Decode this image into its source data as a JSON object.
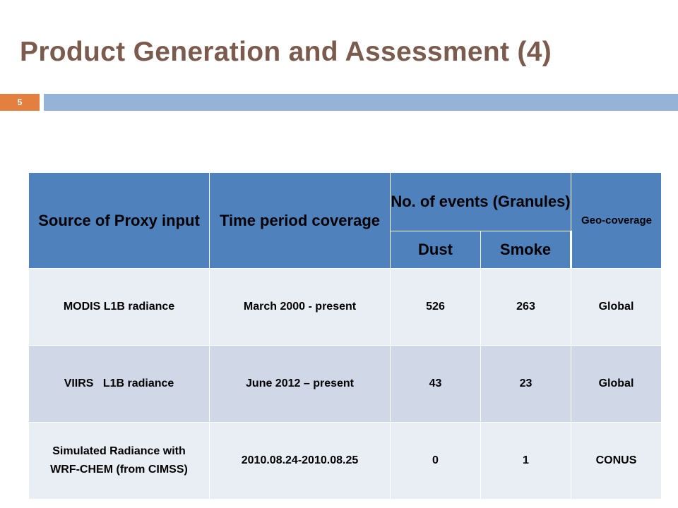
{
  "slide": {
    "title": "Product Generation and Assessment (4)",
    "page_number": "5",
    "accent_color": "#e3803f",
    "band_color": "#95b3d6",
    "title_color": "#7a5b4d"
  },
  "table": {
    "header_color": "#4f81bd",
    "headers": {
      "source": "Source of  Proxy input",
      "time": "Time period coverage",
      "events": "No. of events (Granules)",
      "dust": "Dust",
      "smoke": "Smoke",
      "geo": "Geo-coverage"
    },
    "rows": [
      {
        "source": "MODIS L1B radiance",
        "time": "March 2000 - present",
        "dust": "526",
        "smoke": "263",
        "geo": "Global"
      },
      {
        "source": "VIIRS   L1B radiance",
        "time": "June 2012 – present",
        "dust": "43",
        "smoke": "23",
        "geo": "Global"
      },
      {
        "source": "Simulated Radiance with WRF-CHEM (from CIMSS)",
        "time": "2010.08.24-2010.08.25",
        "dust": "0",
        "smoke": "1",
        "geo": "CONUS"
      }
    ]
  }
}
